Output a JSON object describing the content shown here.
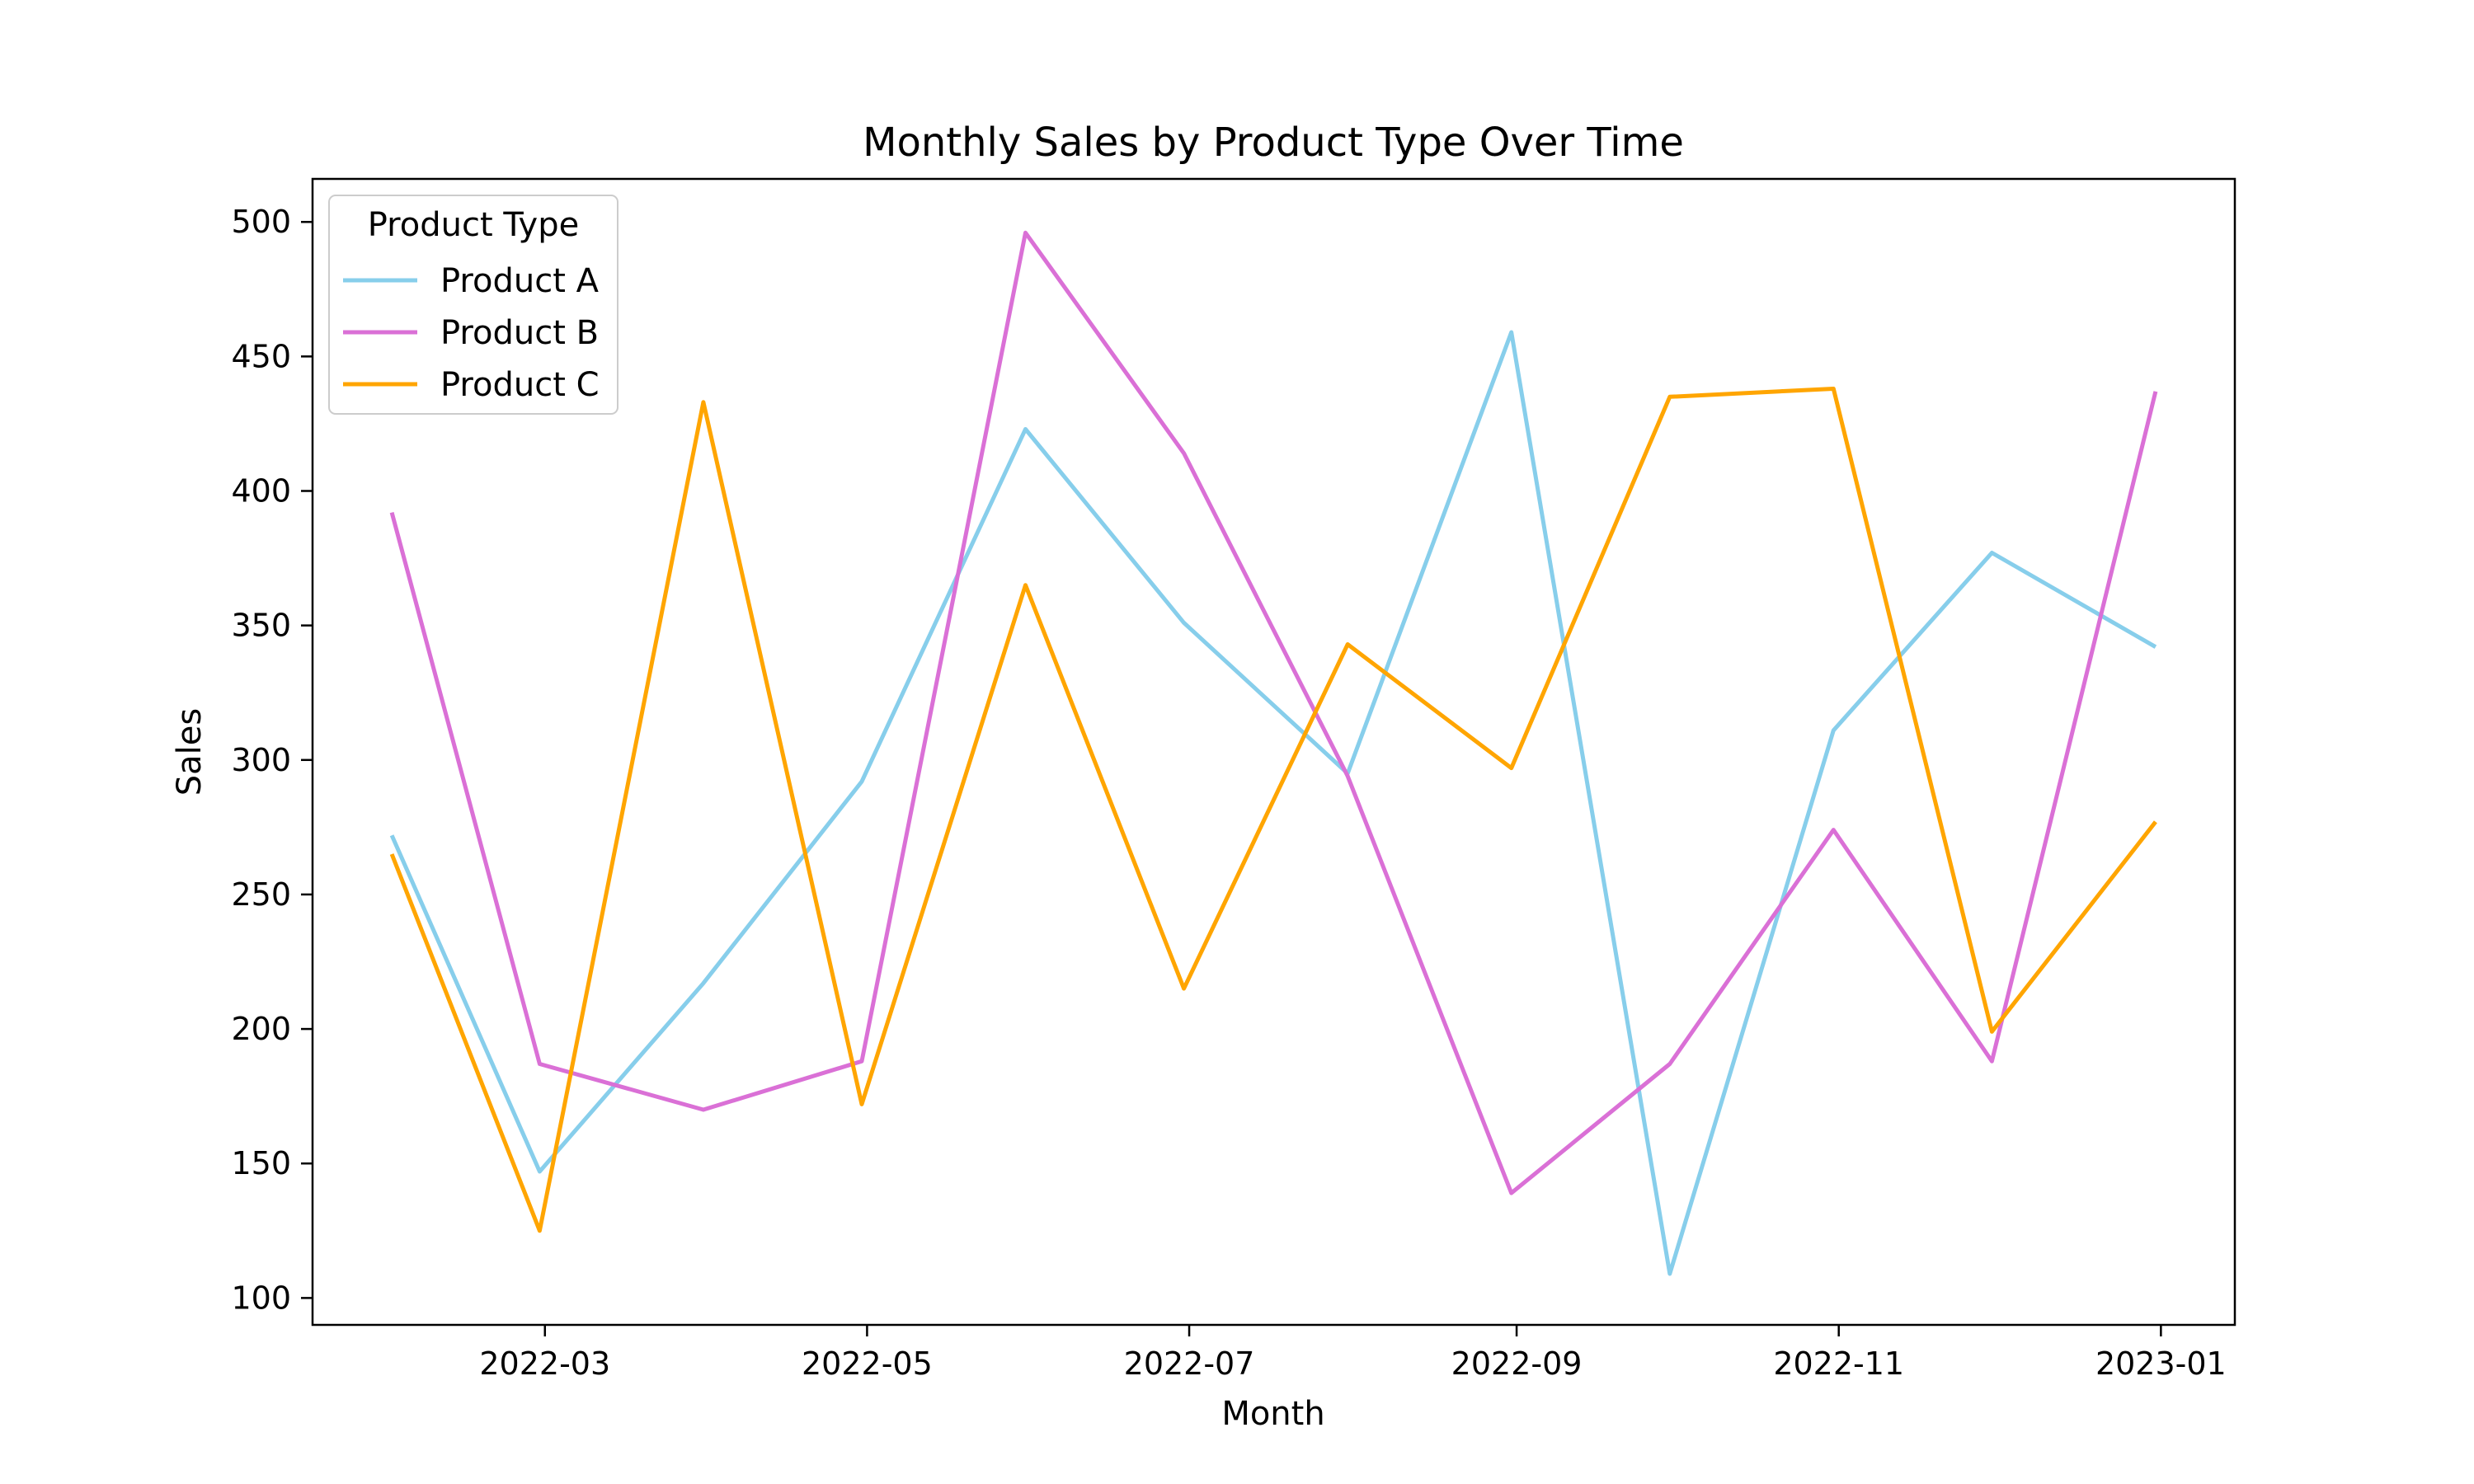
{
  "chart_data": {
    "type": "line",
    "title": "Monthly Sales by Product Type Over Time",
    "xlabel": "Month",
    "ylabel": "Sales",
    "x": [
      "2022-01-31",
      "2022-02-28",
      "2022-03-31",
      "2022-04-30",
      "2022-05-31",
      "2022-06-30",
      "2022-07-31",
      "2022-08-31",
      "2022-09-30",
      "2022-10-31",
      "2022-11-30",
      "2022-12-31"
    ],
    "xlim": [
      "2022-01-16",
      "2023-01-15"
    ],
    "xticks": [
      "2022-03",
      "2022-05",
      "2022-07",
      "2022-09",
      "2022-11",
      "2023-01"
    ],
    "ylim": [
      90,
      516
    ],
    "yticks": [
      100,
      150,
      200,
      250,
      300,
      350,
      400,
      450,
      500
    ],
    "grid": false,
    "legend": {
      "title": "Product Type",
      "placement": "top-left"
    },
    "series": [
      {
        "name": "Product A",
        "color": "#87CEEB",
        "values": [
          272,
          147,
          217,
          292,
          423,
          351,
          295,
          459,
          109,
          311,
          377,
          342
        ]
      },
      {
        "name": "Product B",
        "color": "#DA70D6",
        "values": [
          392,
          187,
          170,
          188,
          496,
          414,
          294,
          139,
          187,
          274,
          188,
          437
        ]
      },
      {
        "name": "Product C",
        "color": "#FFA500",
        "values": [
          265,
          125,
          433,
          172,
          365,
          215,
          343,
          297,
          435,
          438,
          199,
          277
        ]
      }
    ]
  }
}
